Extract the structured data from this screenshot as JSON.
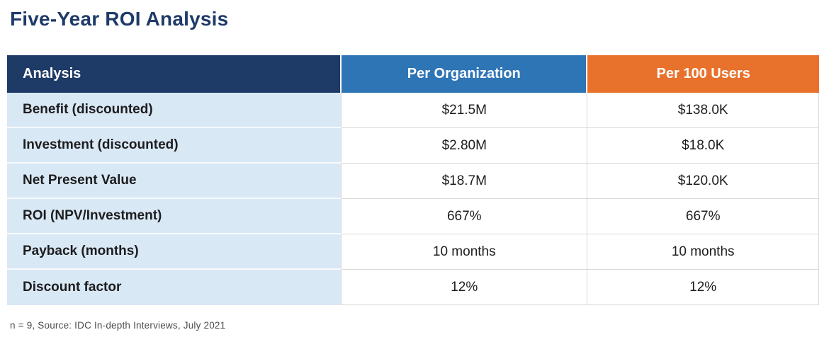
{
  "page": {
    "title": "Five-Year ROI Analysis",
    "footnote": "n = 9, Source: IDC In-depth Interviews, July 2021"
  },
  "chart_data": {
    "type": "table",
    "title": "Five-Year ROI Analysis",
    "columns": [
      "Analysis",
      "Per Organization",
      "Per 100 Users"
    ],
    "rows": [
      [
        "Benefit (discounted)",
        "$21.5M",
        "$138.0K"
      ],
      [
        "Investment (discounted)",
        "$2.80M",
        "$18.0K"
      ],
      [
        "Net Present Value",
        "$18.7M",
        "$120.0K"
      ],
      [
        "ROI (NPV/Investment)",
        "667%",
        "667%"
      ],
      [
        "Payback (months)",
        "10 months",
        "10 months"
      ],
      [
        "Discount factor",
        "12%",
        "12%"
      ]
    ],
    "source_note": "n = 9, Source: IDC In-depth Interviews, July 2021"
  },
  "table": {
    "headers": {
      "analysis": "Analysis",
      "per_organization": "Per Organization",
      "per_100_users": "Per 100 Users"
    },
    "rows": [
      {
        "label": "Benefit (discounted)",
        "per_organization": "$21.5M",
        "per_100_users": "$138.0K"
      },
      {
        "label": "Investment (discounted)",
        "per_organization": "$2.80M",
        "per_100_users": "$18.0K"
      },
      {
        "label": "Net Present Value",
        "per_organization": "$18.7M",
        "per_100_users": "$120.0K"
      },
      {
        "label": "ROI (NPV/Investment)",
        "per_organization": "667%",
        "per_100_users": "667%"
      },
      {
        "label": "Payback (months)",
        "per_organization": "10 months",
        "per_100_users": "10 months"
      },
      {
        "label": "Discount factor",
        "per_organization": "12%",
        "per_100_users": "12%"
      }
    ]
  },
  "colors": {
    "title": "#1f3a68",
    "header_analysis_bg": "#1e3a66",
    "header_org_bg": "#2e75b6",
    "header_users_bg": "#e8722c",
    "row_label_bg": "#d9e8f5",
    "grid_line": "#d9d9d9",
    "footnote": "#4d4d4d"
  }
}
